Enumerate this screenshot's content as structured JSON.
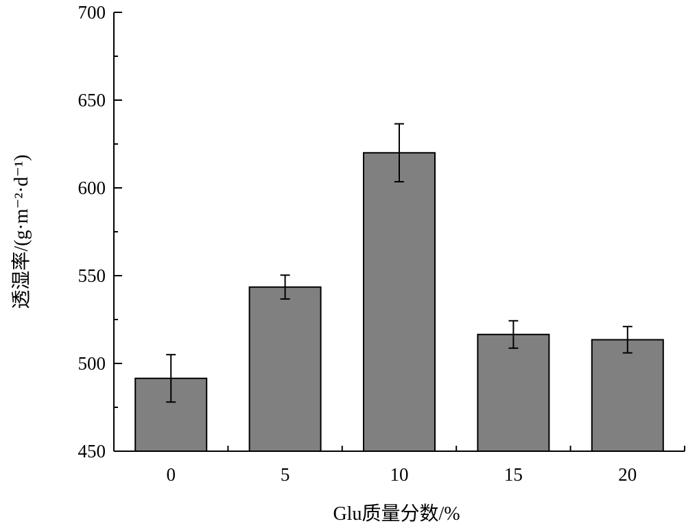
{
  "chart_data": {
    "type": "bar",
    "title": "",
    "xlabel": "Glu质量分数/%",
    "ylabel": "透湿率/(g·m⁻²·d⁻¹)",
    "categories": [
      "0",
      "5",
      "10",
      "15",
      "20"
    ],
    "values": [
      491.5,
      543.5,
      620.0,
      516.5,
      513.5
    ],
    "errors": [
      13.5,
      6.8,
      16.5,
      7.8,
      7.5
    ],
    "ylim": [
      450,
      700
    ],
    "yticks": [
      450,
      500,
      550,
      600,
      650,
      700
    ],
    "grid": false,
    "legend": "none",
    "bar_color": "#808080"
  }
}
